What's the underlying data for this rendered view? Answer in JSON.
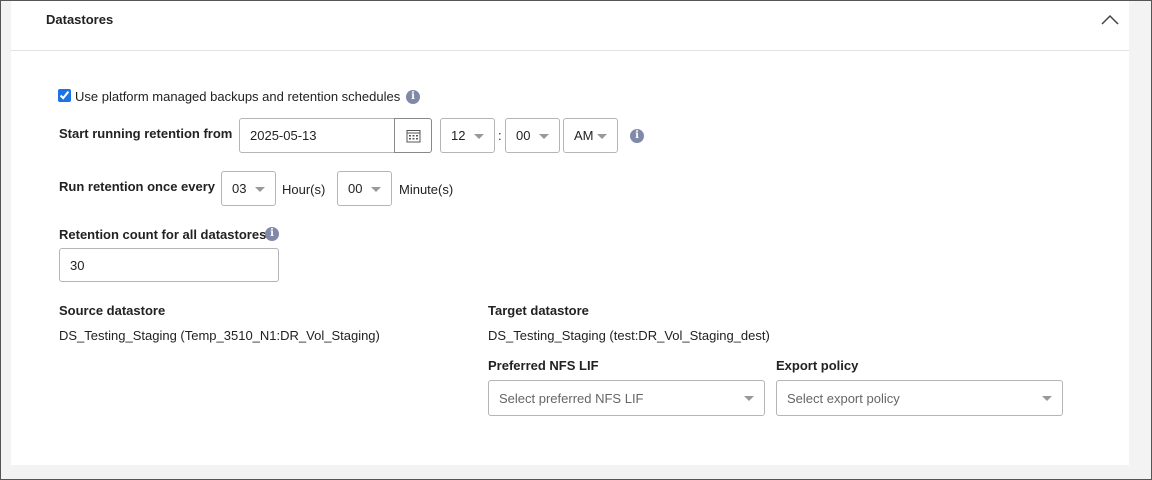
{
  "section": {
    "title": "Datastores",
    "collapse_icon": "chevron-up-icon"
  },
  "managed": {
    "label": "Use platform managed backups and retention schedules",
    "checked": true
  },
  "start": {
    "label": "Start running retention from",
    "date": "2025-05-13",
    "hour": "12",
    "separator": ":",
    "minute": "00",
    "ampm": "AM"
  },
  "interval": {
    "label": "Run retention once every",
    "hours": "03",
    "hours_unit": "Hour(s)",
    "minutes": "00",
    "minutes_unit": "Minute(s)"
  },
  "count": {
    "label": "Retention count for all datastores",
    "value": "30"
  },
  "source": {
    "label": "Source datastore",
    "value": "DS_Testing_Staging (Temp_3510_N1:DR_Vol_Staging)"
  },
  "target": {
    "label": "Target datastore",
    "value": "DS_Testing_Staging (test:DR_Vol_Staging_dest)"
  },
  "nfs_lif": {
    "label": "Preferred NFS LIF",
    "placeholder": "Select preferred NFS LIF"
  },
  "export_policy": {
    "label": "Export policy",
    "placeholder": "Select export policy"
  },
  "colors": {
    "accent": "#1a73e8",
    "info": "#8189a8"
  }
}
